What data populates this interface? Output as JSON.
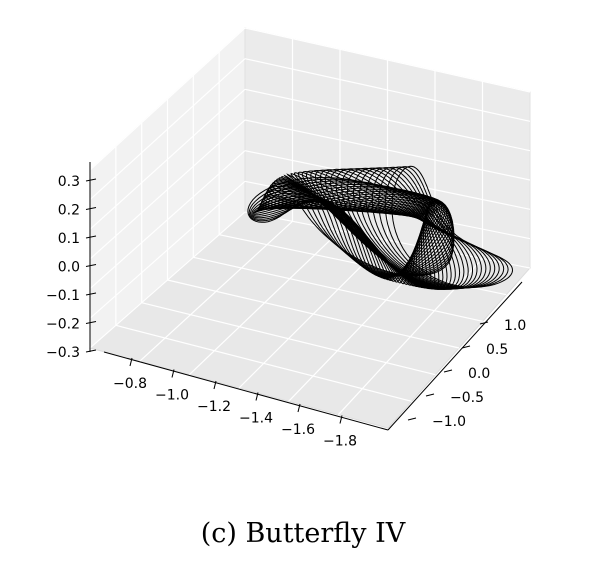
{
  "caption": "(c) Butterfly IV",
  "chart_data": {
    "type": "line",
    "projection": "3d",
    "title": "",
    "xlabel": "",
    "ylabel": "",
    "zlabel": "",
    "grid": true,
    "x_ticks": [
      "−0.8",
      "−1.0",
      "−1.2",
      "−1.4",
      "−1.6",
      "−1.8"
    ],
    "y_ticks": [
      "1.0",
      "0.5",
      "0.0",
      "−0.5",
      "−1.0"
    ],
    "z_ticks": [
      "0.3",
      "0.2",
      "0.1",
      "0.0",
      "−0.1",
      "−0.2",
      "−0.3"
    ],
    "xlim": [
      -1.9,
      -0.7
    ],
    "ylim": [
      -1.2,
      1.2
    ],
    "zlim": [
      -0.3,
      0.3
    ],
    "series": [
      {
        "style": "wireframe orbit bundle",
        "color": "#000000",
        "x_range": [
          -1.85,
          -0.75
        ],
        "y_range": [
          -1.0,
          1.0
        ],
        "z_range": [
          -0.3,
          0.3
        ]
      }
    ]
  }
}
